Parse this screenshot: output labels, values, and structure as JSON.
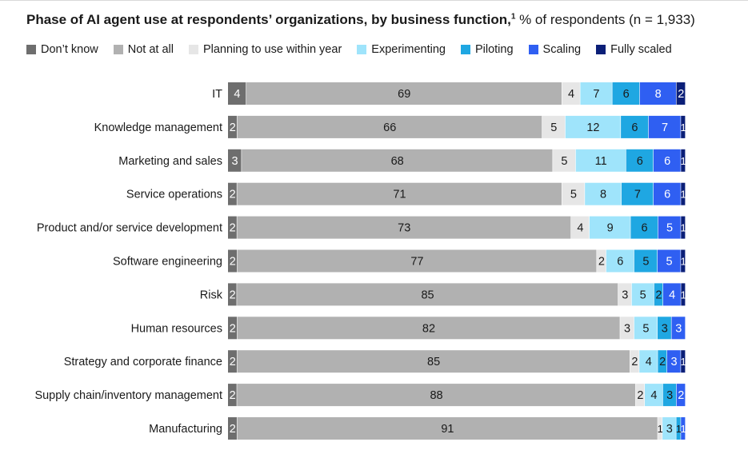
{
  "title": {
    "main": "Phase of AI agent use at respondents’ organizations, by business function,",
    "footnote_mark": "1",
    "subtitle": " % of respondents (n = 1,933)"
  },
  "chart_data": {
    "type": "bar",
    "orientation": "horizontal",
    "stacked": true,
    "title": "Phase of AI agent use at respondents’ organizations, by business function",
    "subtitle": "% of respondents (n = 1,933)",
    "legend_position": "top-left",
    "grid": false,
    "xlim": [
      0,
      100
    ],
    "categories": [
      "IT",
      "Knowledge management",
      "Marketing and sales",
      "Service operations",
      "Product and/or service development",
      "Software engineering",
      "Risk",
      "Human resources",
      "Strategy and corporate finance",
      "Supply chain/inventory management",
      "Manufacturing"
    ],
    "series": [
      {
        "name": "Don’t know",
        "color": "#6e6e6e",
        "label_color": "#ffffff",
        "values": [
          4,
          2,
          3,
          2,
          2,
          2,
          2,
          2,
          2,
          2,
          2
        ]
      },
      {
        "name": "Not at all",
        "color": "#b1b1b1",
        "label_color": "#1a1a1a",
        "values": [
          69,
          66,
          68,
          71,
          73,
          77,
          85,
          82,
          85,
          88,
          91
        ]
      },
      {
        "name": "Planning to use within year",
        "color": "#e6e6e6",
        "label_color": "#1a1a1a",
        "values": [
          4,
          5,
          5,
          5,
          4,
          2,
          3,
          3,
          2,
          2,
          1
        ]
      },
      {
        "name": "Experimenting",
        "color": "#9fe4fb",
        "label_color": "#1a1a1a",
        "values": [
          7,
          12,
          11,
          8,
          9,
          6,
          5,
          5,
          4,
          4,
          3
        ]
      },
      {
        "name": "Piloting",
        "color": "#1fa7e2",
        "label_color": "#1a1a1a",
        "values": [
          6,
          6,
          6,
          7,
          6,
          5,
          2,
          3,
          2,
          3,
          1
        ]
      },
      {
        "name": "Scaling",
        "color": "#2f5ff2",
        "label_color": "#ffffff",
        "values": [
          8,
          7,
          6,
          6,
          5,
          5,
          4,
          3,
          3,
          2,
          1
        ]
      },
      {
        "name": "Fully scaled",
        "color": "#0b1f78",
        "label_color": "#ffffff",
        "values": [
          2,
          1,
          1,
          1,
          1,
          1,
          1,
          0,
          1,
          0,
          0
        ]
      }
    ]
  }
}
